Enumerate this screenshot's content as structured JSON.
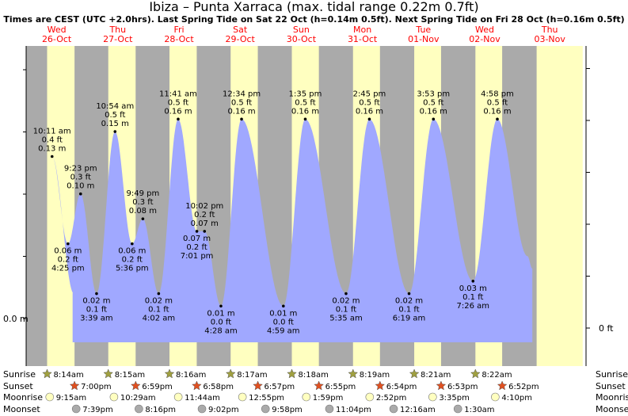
{
  "header": {
    "title": "Ibiza – Punta Xarraca (max. tidal range 0.22m 0.7ft)",
    "subtitle": "Times are CEST (UTC +2.0hrs). Last Spring Tide on Sat 22 Oct (h=0.14m 0.5ft). Next Spring Tide on Fri 28 Oct (h=0.16m 0.5ft)"
  },
  "colors": {
    "day": "#ffffc0",
    "night": "#aaaaaa",
    "tide_fill": "#a0a8ff",
    "date_label": "#ff0000",
    "sun_star": "#a0a040",
    "moon_rise": "#ffffc0",
    "moon_set": "#aaaaaa",
    "sunset_star": "#e05020"
  },
  "days": [
    {
      "dow": "Wed",
      "date": "26-Oct"
    },
    {
      "dow": "Thu",
      "date": "27-Oct"
    },
    {
      "dow": "Fri",
      "date": "28-Oct"
    },
    {
      "dow": "Sat",
      "date": "29-Oct"
    },
    {
      "dow": "Sun",
      "date": "30-Oct"
    },
    {
      "dow": "Mon",
      "date": "31-Oct"
    },
    {
      "dow": "Tue",
      "date": "01-Nov"
    },
    {
      "dow": "Wed",
      "date": "02-Nov"
    },
    {
      "dow": "Thu",
      "date": "03-Nov"
    }
  ],
  "axis": {
    "left_label": "0.0 m",
    "right_label": "0 ft"
  },
  "chart_data": {
    "type": "area",
    "ylim_m": [
      -0.025,
      0.23
    ],
    "xlim_days": [
      0,
      9
    ],
    "tides": [
      {
        "day": 0,
        "time": "10:11 am",
        "t": 10.18,
        "ft": "0.4 ft",
        "m": "0.13 m",
        "h": 0.13,
        "kind": "high"
      },
      {
        "day": 0,
        "time": "4:25 pm",
        "t": 16.42,
        "ft": "0.2 ft",
        "m": "0.06 m",
        "h": 0.06,
        "kind": "low"
      },
      {
        "day": 0,
        "time": "9:23 pm",
        "t": 21.38,
        "ft": "0.3 ft",
        "m": "0.10 m",
        "h": 0.1,
        "kind": "high"
      },
      {
        "day": 1,
        "time": "3:39 am",
        "t": 3.65,
        "ft": "0.1 ft",
        "m": "0.02 m",
        "h": 0.02,
        "kind": "low"
      },
      {
        "day": 1,
        "time": "10:54 am",
        "t": 10.9,
        "ft": "0.5 ft",
        "m": "0.15 m",
        "h": 0.15,
        "kind": "high"
      },
      {
        "day": 1,
        "time": "5:36 pm",
        "t": 17.6,
        "ft": "0.2 ft",
        "m": "0.06 m",
        "h": 0.06,
        "kind": "low"
      },
      {
        "day": 1,
        "time": "9:49 pm",
        "t": 21.82,
        "ft": "0.3 ft",
        "m": "0.08 m",
        "h": 0.08,
        "kind": "high"
      },
      {
        "day": 2,
        "time": "4:02 am",
        "t": 4.03,
        "ft": "0.1 ft",
        "m": "0.02 m",
        "h": 0.02,
        "kind": "low"
      },
      {
        "day": 2,
        "time": "11:41 am",
        "t": 11.68,
        "ft": "0.5 ft",
        "m": "0.16 m",
        "h": 0.16,
        "kind": "high"
      },
      {
        "day": 2,
        "time": "7:01 pm",
        "t": 19.02,
        "ft": "0.2 ft",
        "m": "0.07 m",
        "h": 0.07,
        "kind": "low"
      },
      {
        "day": 2,
        "time": "10:02 pm",
        "t": 22.03,
        "ft": "0.2 ft",
        "m": "0.07 m",
        "h": 0.07,
        "kind": "high"
      },
      {
        "day": 3,
        "time": "4:28 am",
        "t": 4.47,
        "ft": "0.0 ft",
        "m": "0.01 m",
        "h": 0.01,
        "kind": "low"
      },
      {
        "day": 3,
        "time": "12:34 pm",
        "t": 12.57,
        "ft": "0.5 ft",
        "m": "0.16 m",
        "h": 0.16,
        "kind": "high"
      },
      {
        "day": 4,
        "time": "4:59 am",
        "t": 4.98,
        "ft": "0.0 ft",
        "m": "0.01 m",
        "h": 0.01,
        "kind": "low"
      },
      {
        "day": 4,
        "time": "1:35 pm",
        "t": 13.58,
        "ft": "0.5 ft",
        "m": "0.16 m",
        "h": 0.16,
        "kind": "high"
      },
      {
        "day": 5,
        "time": "5:35 am",
        "t": 5.58,
        "ft": "0.1 ft",
        "m": "0.02 m",
        "h": 0.02,
        "kind": "low"
      },
      {
        "day": 5,
        "time": "2:45 pm",
        "t": 14.75,
        "ft": "0.5 ft",
        "m": "0.16 m",
        "h": 0.16,
        "kind": "high"
      },
      {
        "day": 6,
        "time": "6:19 am",
        "t": 6.32,
        "ft": "0.1 ft",
        "m": "0.02 m",
        "h": 0.02,
        "kind": "low"
      },
      {
        "day": 6,
        "time": "3:53 pm",
        "t": 15.88,
        "ft": "0.5 ft",
        "m": "0.16 m",
        "h": 0.16,
        "kind": "high"
      },
      {
        "day": 7,
        "time": "7:26 am",
        "t": 7.43,
        "ft": "0.1 ft",
        "m": "0.03 m",
        "h": 0.03,
        "kind": "low"
      },
      {
        "day": 7,
        "time": "4:58 pm",
        "t": 16.97,
        "ft": "0.5 ft",
        "m": "0.16 m",
        "h": 0.16,
        "kind": "high"
      }
    ]
  },
  "astro": {
    "labels": {
      "sunrise": "Sunrise",
      "sunset": "Sunset",
      "moonrise": "Moonrise",
      "moonset": "Moonset"
    },
    "sunrise": [
      "8:14am",
      "8:15am",
      "8:16am",
      "8:17am",
      "8:18am",
      "8:19am",
      "8:21am",
      "8:22am"
    ],
    "sunset": [
      "7:00pm",
      "6:59pm",
      "6:58pm",
      "6:57pm",
      "6:55pm",
      "6:54pm",
      "6:53pm",
      "6:52pm"
    ],
    "moonrise": [
      "9:15am",
      "10:29am",
      "11:44am",
      "12:55pm",
      "1:59pm",
      "2:52pm",
      "3:35pm",
      "4:10pm"
    ],
    "moonset": [
      "7:39pm",
      "8:16pm",
      "9:02pm",
      "9:58pm",
      "11:04pm",
      "12:16am",
      "1:30am"
    ]
  }
}
